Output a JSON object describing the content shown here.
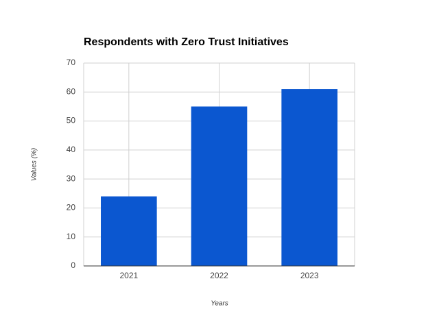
{
  "chart_data": {
    "type": "bar",
    "title": "Respondents with Zero Trust Initiatives",
    "x_label": "Years",
    "y_label": "Values (%)",
    "categories": [
      "2021",
      "2022",
      "2023"
    ],
    "values": [
      24,
      55,
      61
    ],
    "color": "#0b57d0",
    "ylim": [
      0,
      70
    ],
    "yticks": [
      0,
      10,
      20,
      30,
      40,
      50,
      60,
      70
    ],
    "grid": true
  }
}
